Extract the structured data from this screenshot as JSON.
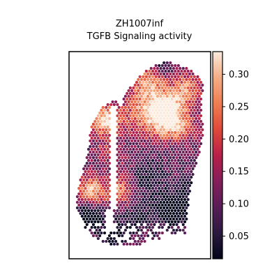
{
  "chart_data": {
    "type": "heatmap",
    "title_line1": "ZH1007inf",
    "title_line2": "TGFB Signaling activity",
    "xlabel": "",
    "ylabel": "",
    "grid": false,
    "colorbar": {
      "min": 0.015,
      "max": 0.335,
      "ticks": [
        0.05,
        0.1,
        0.15,
        0.2,
        0.25,
        0.3
      ],
      "tick_labels": [
        "0.05",
        "0.10",
        "0.15",
        "0.20",
        "0.25",
        "0.30"
      ],
      "colormap": "rocket",
      "colors": [
        "#03051a",
        "#2b1a3f",
        "#581d57",
        "#851e5a",
        "#b81f48",
        "#df4939",
        "#ef7d52",
        "#f5ad85",
        "#faebdd"
      ]
    },
    "spots_description": "Hexagonal spatial transcriptomics spots forming a tissue section; values concentrated 0.05-0.30",
    "spots": [
      {
        "region": "left-upper-lobe",
        "value": 0.31
      },
      {
        "region": "right-upper-lobe",
        "value": 0.3
      },
      {
        "region": "center-right",
        "value": 0.27
      },
      {
        "region": "left-middle",
        "value": 0.26
      },
      {
        "region": "lower-left",
        "value": 0.24
      },
      {
        "region": "lower-right",
        "value": 0.09
      },
      {
        "region": "bottom-fragments",
        "value": 0.05
      }
    ]
  }
}
